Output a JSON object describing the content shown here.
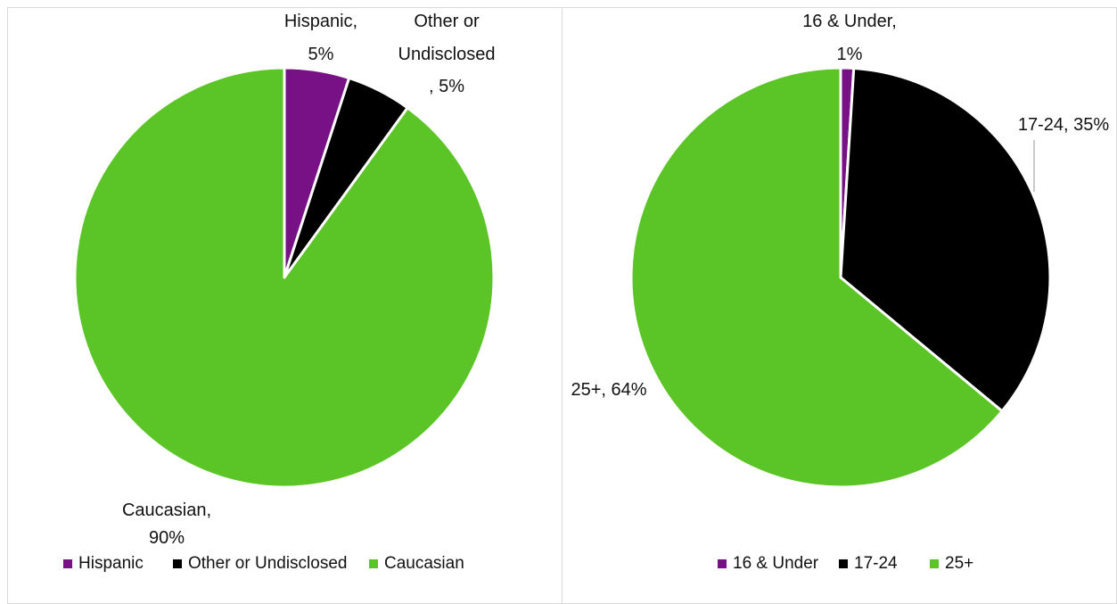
{
  "chart_data": [
    {
      "type": "pie",
      "title": "",
      "categories": [
        "Hispanic",
        "Other or Undisclosed",
        "Caucasian"
      ],
      "values": [
        5,
        5,
        90
      ],
      "unit": "%",
      "colors": [
        "#781185",
        "#000000",
        "#5bc427"
      ],
      "data_labels": [
        [
          "Hispanic,",
          "5%"
        ],
        [
          "Other or",
          "Undisclosed",
          ", 5%"
        ],
        [
          "Caucasian,",
          "90%"
        ]
      ],
      "legend": {
        "position": "bottom",
        "entries": [
          "Hispanic",
          "Other or Undisclosed",
          "Caucasian"
        ]
      }
    },
    {
      "type": "pie",
      "title": "",
      "categories": [
        "16 & Under",
        "17-24",
        "25+"
      ],
      "values": [
        1,
        35,
        64
      ],
      "unit": "%",
      "colors": [
        "#781185",
        "#000000",
        "#5bc427"
      ],
      "data_labels": [
        [
          "16 & Under,",
          "1%"
        ],
        [
          "17-24, 35%"
        ],
        [
          "25+, 64%"
        ]
      ],
      "legend": {
        "position": "bottom",
        "entries": [
          "16 & Under",
          "17-24",
          "25+"
        ]
      }
    }
  ]
}
